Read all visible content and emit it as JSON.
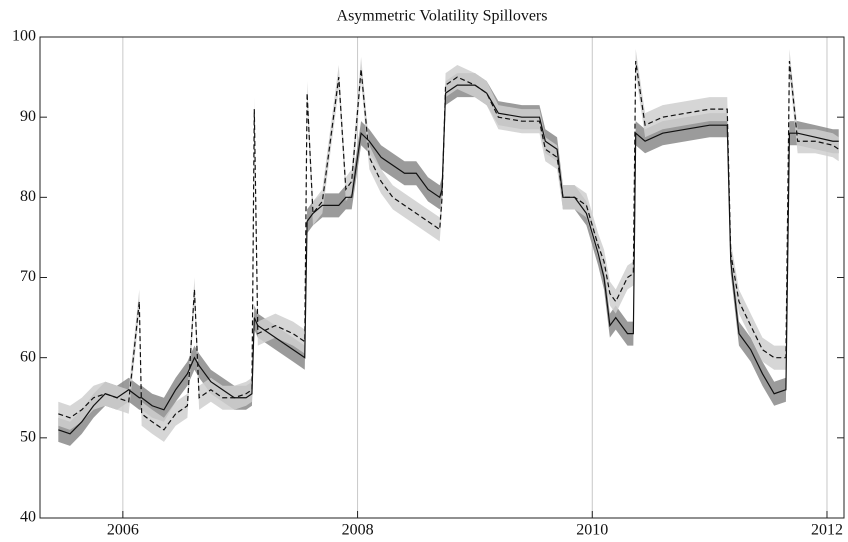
{
  "chart_data": {
    "type": "line",
    "title": "Asymmetric Volatility Spillovers",
    "x": [
      2005.45,
      2005.55,
      2005.65,
      2005.75,
      2005.85,
      2005.95,
      2006.05,
      2006.14,
      2006.16,
      2006.25,
      2006.35,
      2006.45,
      2006.55,
      2006.61,
      2006.65,
      2006.75,
      2006.85,
      2006.95,
      2007.05,
      2007.1,
      2007.12,
      2007.15,
      2007.3,
      2007.45,
      2007.55,
      2007.57,
      2007.62,
      2007.7,
      2007.84,
      2007.9,
      2007.95,
      2008.03,
      2008.1,
      2008.2,
      2008.3,
      2008.4,
      2008.5,
      2008.6,
      2008.7,
      2008.72,
      2008.75,
      2008.85,
      2009.0,
      2009.1,
      2009.2,
      2009.4,
      2009.55,
      2009.6,
      2009.7,
      2009.75,
      2009.85,
      2009.95,
      2010.05,
      2010.1,
      2010.15,
      2010.2,
      2010.3,
      2010.35,
      2010.37,
      2010.45,
      2010.6,
      2010.8,
      2011.0,
      2011.15,
      2011.18,
      2011.25,
      2011.35,
      2011.45,
      2011.55,
      2011.65,
      2011.68,
      2011.75,
      2011.9,
      2012.05,
      2012.1
    ],
    "series": [
      {
        "color": "#111111",
        "band_color": "#8a8a8a",
        "dash": false,
        "values": [
          51,
          50.5,
          52,
          54,
          55.5,
          55,
          56,
          55,
          55,
          54,
          53.5,
          56,
          58,
          60,
          59,
          57,
          56,
          55,
          55,
          55.5,
          65,
          64,
          62.5,
          61,
          60,
          77,
          78,
          79,
          79,
          80,
          80,
          88,
          87,
          85,
          84,
          83,
          83,
          81,
          80,
          81,
          93,
          94,
          94,
          93,
          90.5,
          90,
          90,
          87,
          86,
          80,
          80,
          78,
          73,
          70,
          64,
          65,
          63,
          63,
          88,
          87,
          88,
          88.5,
          89,
          89,
          72,
          63,
          61,
          58,
          55.5,
          56,
          88,
          88,
          87.5,
          87,
          87
        ],
        "lower": [
          49.5,
          49,
          50.5,
          52.5,
          54,
          53.5,
          54.5,
          53.5,
          53.5,
          52.5,
          52,
          54.5,
          56.5,
          58.5,
          57.5,
          55.5,
          54.5,
          53.5,
          53.5,
          54,
          63.5,
          62.5,
          61,
          59.5,
          58.5,
          75.5,
          76.5,
          77.5,
          77.5,
          78.5,
          78.5,
          86.5,
          85.5,
          83.5,
          82.5,
          81.5,
          81.5,
          79.5,
          78.5,
          79.5,
          91.5,
          92.5,
          92.5,
          91.5,
          89,
          88.5,
          88.5,
          85.5,
          84.5,
          78.5,
          78.5,
          76.5,
          71.5,
          68.5,
          62.5,
          63.5,
          61.5,
          61.5,
          86.5,
          85.5,
          86.5,
          87,
          87.5,
          87.5,
          70.5,
          61.5,
          59.5,
          56.5,
          54,
          54.5,
          86.5,
          86.5,
          86,
          85.5,
          85.5
        ],
        "upper": [
          52.5,
          52,
          53.5,
          55.5,
          57,
          56.5,
          57.5,
          56.5,
          56.5,
          55.5,
          55,
          57.5,
          59.5,
          61.5,
          60.5,
          58.5,
          57.5,
          56.5,
          56.5,
          57,
          66.5,
          65.5,
          64,
          62.5,
          61.5,
          78.5,
          79.5,
          80.5,
          80.5,
          81.5,
          81.5,
          89.5,
          88.5,
          86.5,
          85.5,
          84.5,
          84.5,
          82.5,
          81.5,
          82.5,
          94.5,
          95.5,
          95.5,
          94.5,
          92,
          91.5,
          91.5,
          88.5,
          87.5,
          81.5,
          81.5,
          79.5,
          74.5,
          71.5,
          65.5,
          66.5,
          64.5,
          64.5,
          89.5,
          88.5,
          89.5,
          90,
          90.5,
          90.5,
          73.5,
          64.5,
          62.5,
          59.5,
          57,
          57.5,
          89.5,
          89.5,
          89,
          88.5,
          88.5
        ]
      },
      {
        "color": "#111111",
        "band_color": "#cfcfcf",
        "dash": true,
        "values": [
          53,
          52.5,
          53.5,
          55,
          55.5,
          55,
          54.5,
          67,
          53,
          52,
          51,
          53,
          54,
          68.5,
          55,
          56,
          55,
          55,
          55.5,
          56,
          91,
          63,
          64,
          63,
          62,
          93,
          78,
          79.5,
          95,
          81,
          82,
          96,
          85,
          82,
          80,
          79,
          78,
          77,
          76,
          80,
          94,
          95,
          94,
          93,
          90,
          89.5,
          89.5,
          86,
          85,
          80,
          80,
          79,
          74,
          72,
          68,
          67,
          70,
          70.5,
          97,
          89,
          90,
          90.5,
          91,
          91,
          73,
          67,
          64,
          61,
          60,
          60,
          97,
          87,
          87,
          86.5,
          86
        ],
        "lower": [
          51.5,
          51,
          52,
          53.5,
          54,
          53.5,
          53,
          65.5,
          51.5,
          50.5,
          49.5,
          51.5,
          52.5,
          67,
          53.5,
          54.5,
          53.5,
          53.5,
          54,
          54.5,
          89.5,
          61.5,
          62.5,
          61.5,
          60.5,
          91.5,
          76.5,
          78,
          93.5,
          79.5,
          80.5,
          94.5,
          83.5,
          80.5,
          78.5,
          77.5,
          76.5,
          75.5,
          74.5,
          78.5,
          92.5,
          93.5,
          92.5,
          91.5,
          88.5,
          88,
          88,
          84.5,
          83.5,
          78.5,
          78.5,
          77.5,
          72.5,
          70.5,
          66.5,
          65.5,
          68.5,
          69,
          95.5,
          87.5,
          88.5,
          89,
          89.5,
          89.5,
          71.5,
          65.5,
          62.5,
          59.5,
          58.5,
          58.5,
          95.5,
          85.5,
          85.5,
          85,
          84.5
        ],
        "upper": [
          54.5,
          54,
          55,
          56.5,
          57,
          56.5,
          56,
          68.5,
          54.5,
          53.5,
          52.5,
          54.5,
          55.5,
          70,
          56.5,
          57.5,
          56.5,
          56.5,
          57,
          57.5,
          92.5,
          64.5,
          65.5,
          64.5,
          63.5,
          94.5,
          79.5,
          81,
          96.5,
          82.5,
          83.5,
          97.5,
          86.5,
          83.5,
          81.5,
          80.5,
          79.5,
          78.5,
          77.5,
          81.5,
          95.5,
          96.5,
          95.5,
          94.5,
          91.5,
          91,
          91,
          87.5,
          86.5,
          81.5,
          81.5,
          80.5,
          75.5,
          73.5,
          69.5,
          68.5,
          71.5,
          72,
          98.5,
          90.5,
          91.5,
          92,
          92.5,
          92.5,
          74.5,
          68.5,
          65.5,
          62.5,
          61.5,
          61.5,
          98.5,
          88.5,
          88.5,
          88,
          87.5
        ]
      }
    ],
    "xlim": [
      2005.294,
      2012.145
    ],
    "xticks": [
      2006,
      2008,
      2010,
      2012
    ],
    "ylim": [
      40,
      100
    ],
    "yticks": [
      40,
      50,
      60,
      70,
      80,
      90,
      100
    ],
    "grid": "x"
  }
}
